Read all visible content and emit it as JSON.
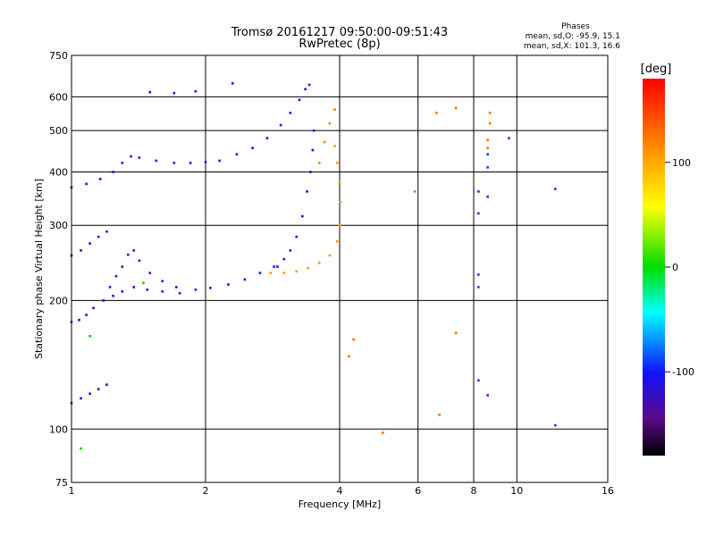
{
  "chart_data": {
    "type": "scatter",
    "title": "Tromsø 20161217 09:50:00-09:51:43",
    "subtitle": "RwPretec (8p)",
    "xlabel": "Frequency [MHz]",
    "ylabel": "Stationary phase Virtual Height [km]",
    "x_scale": "log",
    "y_scale": "log",
    "xlim": [
      1,
      16
    ],
    "ylim": [
      75,
      750
    ],
    "x_ticks": [
      1,
      2,
      4,
      6,
      8,
      10,
      16
    ],
    "y_ticks": [
      75,
      100,
      200,
      300,
      400,
      500,
      600,
      750
    ],
    "grid": true,
    "phase_stats": {
      "heading": "Phases",
      "line_o": "mean, sd,O: -95.9, 15.1",
      "line_x": "mean, sd,X: 101.3, 16.6"
    },
    "colorbar": {
      "label": "[deg]",
      "range": [
        -180,
        180
      ],
      "ticks": [
        100,
        0,
        -100
      ]
    },
    "traces": [
      {
        "phase": -110,
        "points": [
          [
            1.0,
            178
          ],
          [
            1.04,
            180
          ],
          [
            1.08,
            185
          ],
          [
            1.12,
            192
          ],
          [
            1.18,
            200
          ],
          [
            1.24,
            205
          ],
          [
            1.3,
            210
          ],
          [
            1.38,
            215
          ],
          [
            1.48,
            212
          ],
          [
            1.6,
            210
          ],
          [
            1.75,
            208
          ],
          [
            1.9,
            212
          ],
          [
            2.05,
            214
          ],
          [
            2.25,
            218
          ],
          [
            2.45,
            224
          ],
          [
            2.65,
            232
          ],
          [
            2.85,
            240
          ]
        ]
      },
      {
        "phase": -120,
        "points": [
          [
            1.22,
            215
          ],
          [
            1.26,
            228
          ],
          [
            1.3,
            240
          ],
          [
            1.34,
            256
          ],
          [
            1.38,
            262
          ],
          [
            1.42,
            248
          ],
          [
            1.5,
            232
          ],
          [
            1.6,
            222
          ],
          [
            1.72,
            215
          ]
        ]
      },
      {
        "phase": -105,
        "points": [
          [
            2.9,
            240
          ],
          [
            3.0,
            250
          ],
          [
            3.1,
            262
          ],
          [
            3.2,
            282
          ],
          [
            3.3,
            315
          ],
          [
            3.38,
            360
          ],
          [
            3.44,
            400
          ],
          [
            3.48,
            450
          ],
          [
            3.5,
            500
          ]
        ]
      },
      {
        "phase": -100,
        "points": [
          [
            1.0,
            368
          ],
          [
            1.08,
            375
          ],
          [
            1.16,
            385
          ],
          [
            1.24,
            400
          ],
          [
            1.3,
            420
          ],
          [
            1.36,
            435
          ],
          [
            1.42,
            432
          ],
          [
            1.55,
            425
          ],
          [
            1.7,
            420
          ],
          [
            1.85,
            420
          ],
          [
            2.0,
            422
          ],
          [
            2.15,
            425
          ],
          [
            2.35,
            440
          ],
          [
            2.55,
            455
          ],
          [
            2.75,
            480
          ],
          [
            2.95,
            515
          ],
          [
            3.1,
            550
          ],
          [
            3.25,
            590
          ],
          [
            3.35,
            625
          ],
          [
            3.42,
            640
          ]
        ]
      },
      {
        "phase": -115,
        "points": [
          [
            1.0,
            115
          ],
          [
            1.05,
            118
          ],
          [
            1.1,
            121
          ],
          [
            1.15,
            124
          ],
          [
            1.2,
            127
          ]
        ]
      },
      {
        "phase": -112,
        "points": [
          [
            1.0,
            255
          ],
          [
            1.05,
            262
          ],
          [
            1.1,
            272
          ],
          [
            1.15,
            282
          ],
          [
            1.2,
            290
          ]
        ]
      },
      {
        "phase": -100,
        "points": [
          [
            1.5,
            615
          ],
          [
            1.7,
            612
          ],
          [
            1.9,
            618
          ],
          [
            2.3,
            645
          ]
        ]
      },
      {
        "phase": 110,
        "points": [
          [
            2.8,
            232
          ],
          [
            3.0,
            232
          ],
          [
            3.2,
            234
          ],
          [
            3.4,
            238
          ],
          [
            3.6,
            245
          ],
          [
            3.8,
            255
          ],
          [
            3.95,
            275
          ],
          [
            4.0,
            300
          ],
          [
            4.02,
            340
          ],
          [
            4.0,
            380
          ],
          [
            3.95,
            420
          ],
          [
            3.9,
            460
          ]
        ]
      },
      {
        "phase": 120,
        "points": [
          [
            3.6,
            420
          ],
          [
            3.7,
            470
          ],
          [
            3.8,
            520
          ],
          [
            3.9,
            560
          ]
        ]
      },
      {
        "phase": -90,
        "points": [
          [
            8.2,
            360
          ],
          [
            8.2,
            320
          ],
          [
            8.2,
            230
          ],
          [
            8.2,
            215
          ],
          [
            8.2,
            130
          ],
          [
            8.6,
            440
          ],
          [
            8.6,
            410
          ],
          [
            8.6,
            350
          ],
          [
            8.6,
            120
          ],
          [
            9.6,
            480
          ],
          [
            12.2,
            365
          ],
          [
            12.2,
            102
          ]
        ]
      },
      {
        "phase": 130,
        "points": [
          [
            5.9,
            360
          ],
          [
            6.6,
            550
          ],
          [
            7.3,
            565
          ],
          [
            7.3,
            168
          ],
          [
            6.7,
            108
          ],
          [
            8.7,
            550
          ],
          [
            8.7,
            520
          ],
          [
            8.6,
            475
          ],
          [
            8.6,
            455
          ],
          [
            5.0,
            98
          ],
          [
            4.3,
            162
          ],
          [
            4.2,
            148
          ]
        ]
      },
      {
        "phase": 0,
        "points": [
          [
            1.05,
            90
          ],
          [
            1.1,
            165
          ],
          [
            1.45,
            220
          ]
        ]
      }
    ]
  }
}
